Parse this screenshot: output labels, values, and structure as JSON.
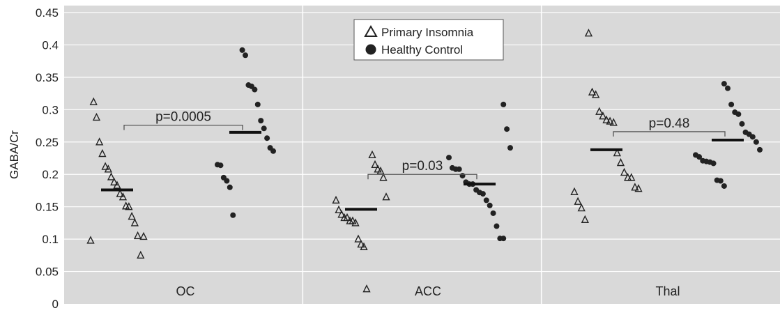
{
  "chart_data": {
    "type": "scatter",
    "ylabel": "GABA/Cr",
    "ylim": [
      0,
      0.45
    ],
    "yticks": [
      "0",
      "0.05",
      "0.1",
      "0.15",
      "0.2",
      "0.25",
      "0.3",
      "0.35",
      "0.4",
      "0.45"
    ],
    "categories": [
      "OC",
      "ACC",
      "Thal"
    ],
    "grid": true,
    "legend_placement": "top-center",
    "series": [
      {
        "name": "Primary Insomnia",
        "marker": "open-triangle",
        "color": "#222222",
        "groups": [
          [
            0.098,
            0.104,
            0.075,
            0.105,
            0.125,
            0.135,
            0.15,
            0.151,
            0.165,
            0.17,
            0.183,
            0.188,
            0.196,
            0.208,
            0.212,
            0.232,
            0.25,
            0.288,
            0.312
          ],
          [
            0.023,
            0.088,
            0.092,
            0.1,
            0.125,
            0.128,
            0.128,
            0.133,
            0.133,
            0.138,
            0.145,
            0.16,
            0.165,
            0.195,
            0.205,
            0.208,
            0.215,
            0.23
          ],
          [
            0.13,
            0.148,
            0.158,
            0.173,
            0.178,
            0.18,
            0.195,
            0.195,
            0.203,
            0.218,
            0.233,
            0.28,
            0.282,
            0.284,
            0.29,
            0.297,
            0.323,
            0.327,
            0.418
          ]
        ],
        "means": [
          0.176,
          0.146,
          0.238
        ]
      },
      {
        "name": "Healthy Control",
        "marker": "filled-circle",
        "color": "#222222",
        "groups": [
          [
            0.137,
            0.18,
            0.19,
            0.195,
            0.214,
            0.215,
            0.236,
            0.241,
            0.256,
            0.271,
            0.283,
            0.308,
            0.331,
            0.336,
            0.338,
            0.384,
            0.392
          ],
          [
            0.101,
            0.101,
            0.12,
            0.14,
            0.152,
            0.16,
            0.17,
            0.172,
            0.176,
            0.185,
            0.185,
            0.188,
            0.198,
            0.208,
            0.208,
            0.21,
            0.226,
            0.241,
            0.27,
            0.308
          ],
          [
            0.182,
            0.19,
            0.191,
            0.217,
            0.219,
            0.22,
            0.221,
            0.227,
            0.23,
            0.238,
            0.25,
            0.258,
            0.262,
            0.265,
            0.278,
            0.293,
            0.296,
            0.308,
            0.333,
            0.34
          ]
        ],
        "means": [
          0.265,
          0.185,
          0.253
        ]
      }
    ],
    "annotations": [
      {
        "category": "OC",
        "text": "p=0.0005",
        "bracket_y": 0.276
      },
      {
        "category": "ACC",
        "text": "p=0.03",
        "bracket_y": 0.2
      },
      {
        "category": "Thal",
        "text": "p=0.48",
        "bracket_y": 0.266
      }
    ]
  }
}
